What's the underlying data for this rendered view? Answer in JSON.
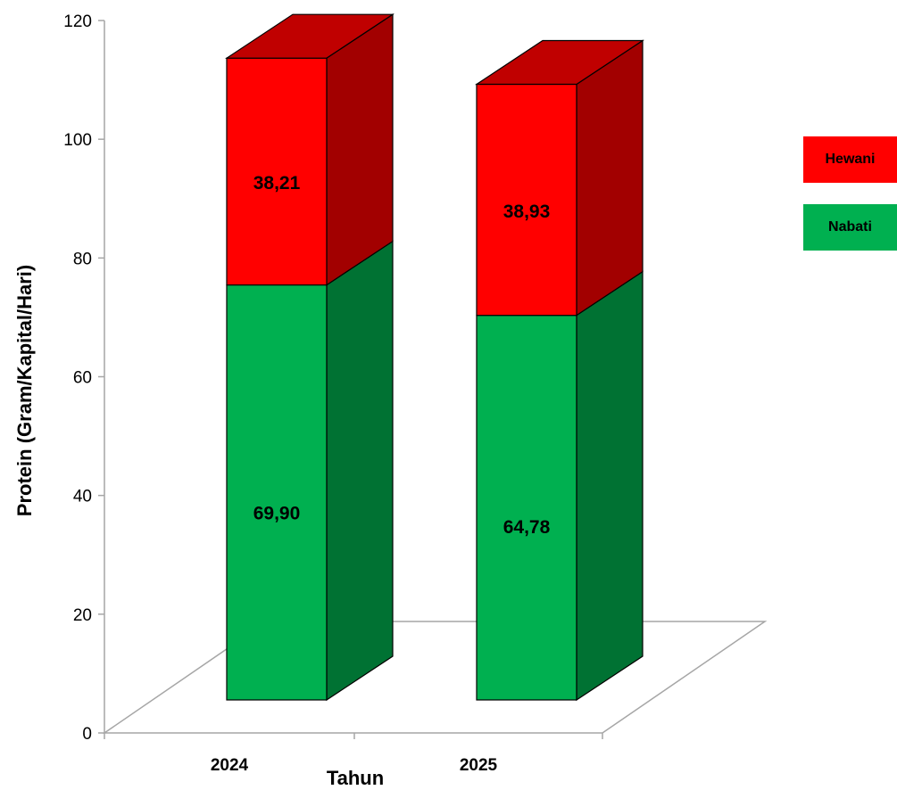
{
  "chart_data": {
    "type": "bar",
    "stacked": true,
    "style": "3d",
    "categories": [
      "2024",
      "2025"
    ],
    "series": [
      {
        "name": "Nabati",
        "values": [
          69.9,
          64.78
        ],
        "labels": [
          "69,90",
          "64,78"
        ],
        "color": "#00b050",
        "side_color": "#007233"
      },
      {
        "name": "Hewani",
        "values": [
          38.21,
          38.93
        ],
        "labels": [
          "38,21",
          "38,93"
        ],
        "color": "#ff0000",
        "side_color": "#a20000",
        "top_color": "#c00000"
      }
    ],
    "xlabel": "Tahun",
    "ylabel": "Protein (Gram/Kapital/Hari)",
    "ylim": [
      0,
      120
    ],
    "yticks": [
      "0",
      "20",
      "40",
      "60",
      "80",
      "100",
      "120"
    ],
    "grid": false,
    "legend": "right",
    "legend_order": [
      "Hewani",
      "Nabati"
    ]
  }
}
